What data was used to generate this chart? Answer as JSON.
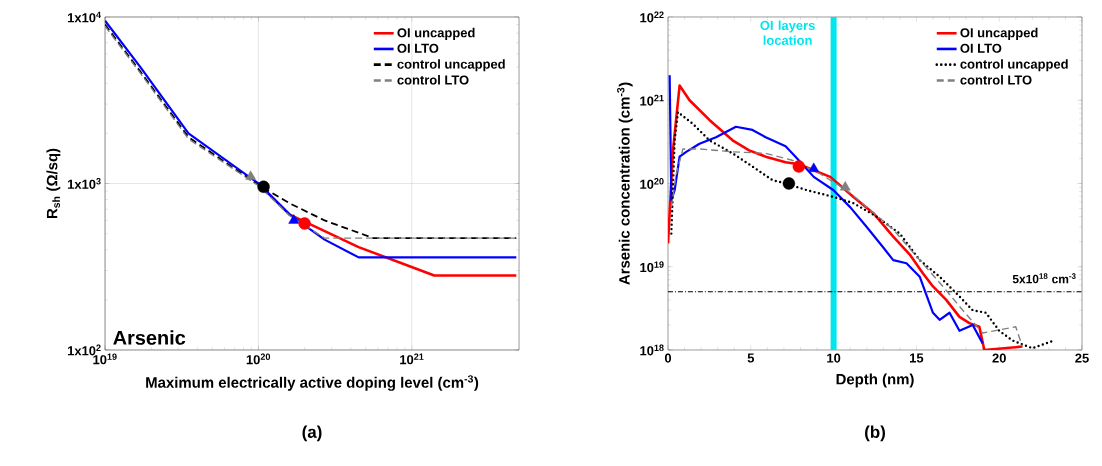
{
  "chart_data": [
    {
      "type": "line",
      "xlabel": "Maximum electrically active doping level (cm$^{-3}$)",
      "ylabel": "R$_{sh}$ (Ω/sq)",
      "log": "xy",
      "grid": true,
      "legend": "top right",
      "xlim": [
        1e+19,
        5e+21
      ],
      "ylim": [
        100,
        10000
      ],
      "xticks": [
        {
          "value": 1e+19,
          "label": "10$^{19}$"
        },
        {
          "value": 1e+20,
          "label": "10$^{20}$"
        },
        {
          "value": 1e+21,
          "label": "10$^{21}$"
        }
      ],
      "yticks": [
        {
          "value": 100,
          "label": "1x10$^{2}$"
        },
        {
          "value": 1000,
          "label": "1x10$^{3}$"
        },
        {
          "value": 10000,
          "label": "1x10$^{4}$"
        }
      ],
      "annotations": [
        "Arsenic",
        "(a)"
      ],
      "series": [
        {
          "name": "OI uncapped",
          "color": "#ff0000",
          "type": "line",
          "line_style": "solid",
          "x": [
            1e+20,
            1.6e+20,
            4.5e+20,
            1.4e+21,
            4.8e+21
          ],
          "values": [
            1000,
            650,
            415,
            280,
            280
          ]
        },
        {
          "name": "OI LTO",
          "color": "#0000ff",
          "type": "line",
          "line_style": "solid",
          "x": [
            1e+19,
            1.7e+19,
            3.5e+19,
            1e+20,
            1.6e+20,
            2.7e+20,
            4.5e+20,
            4.8e+21
          ],
          "values": [
            9500,
            5000,
            2000,
            1000,
            650,
            460,
            360,
            360
          ]
        },
        {
          "name": "control uncapped",
          "color": "#000000",
          "type": "line",
          "line_style": "dashed",
          "x": [
            1e+19,
            1.7e+19,
            3.5e+19,
            1e+20,
            1.6e+20,
            2.7e+20,
            5.6e+20,
            4.8e+21
          ],
          "values": [
            9000,
            4700,
            1900,
            980,
            760,
            600,
            470,
            470
          ]
        },
        {
          "name": "control LTO",
          "color": "#808080",
          "type": "line",
          "line_style": "dashed",
          "x": [
            1e+19,
            1.7e+19,
            3.5e+19,
            1e+20,
            1.6e+20,
            2.7e+20,
            4.8e+21
          ],
          "values": [
            8800,
            4600,
            1850,
            970,
            640,
            470,
            470
          ]
        },
        {
          "color": "#808080",
          "type": "scatter",
          "marker": "triangle",
          "x": [
            8.9e+19
          ],
          "values": [
            1100
          ]
        },
        {
          "color": "#000000",
          "type": "scatter",
          "marker": "circle",
          "x": [
            1.08e+20
          ],
          "values": [
            955
          ]
        },
        {
          "color": "#0000ff",
          "type": "scatter",
          "marker": "triangle",
          "x": [
            1.7e+20
          ],
          "values": [
            600
          ]
        },
        {
          "color": "#ff0000",
          "type": "scatter",
          "marker": "circle",
          "x": [
            2e+20
          ],
          "values": [
            575
          ]
        }
      ]
    },
    {
      "type": "line",
      "xlabel": "Depth (nm)",
      "ylabel": "Arsenic concentration (cm$^{-3}$)",
      "log": "y",
      "legend": "top right",
      "xlim": [
        0,
        25
      ],
      "ylim": [
        1e+18,
        1e+22
      ],
      "xticks": [
        0,
        5,
        10,
        15,
        20,
        25
      ],
      "yticks": [
        {
          "value": 1e+18,
          "label": "10$^{18}$"
        },
        {
          "value": 1e+19,
          "label": "10$^{19}$"
        },
        {
          "value": 1e+20,
          "label": "10$^{20}$"
        },
        {
          "value": 1e+21,
          "label": "10$^{21}$"
        },
        {
          "value": 1e+22,
          "label": "10$^{22}$"
        }
      ],
      "annotations": [
        "(b)"
      ],
      "ref_lines": [
        {
          "axis": "x",
          "value": 10,
          "label": "OI layers location",
          "color": "#00e5ee",
          "line_style": "solid"
        },
        {
          "axis": "y",
          "value": 5e+18,
          "label": "5x10$^{18}$ cm$^{-3}$",
          "color": "#000000",
          "line_style": "dashdot"
        }
      ],
      "series": [
        {
          "name": "OI uncapped",
          "color": "#ff0000",
          "type": "line",
          "line_style": "solid",
          "x": [
            0,
            0.3,
            0.7,
            1.3,
            2.5,
            3.9,
            4.9,
            5.9,
            7.1,
            7.9,
            9.8,
            11.2,
            12.4,
            13.6,
            14.6,
            15.4,
            16.0,
            16.8,
            17.6,
            18.2,
            18.8,
            19.1,
            21.4
          ],
          "values": [
            1.9e+19,
            2.5e+20,
            1.5e+21,
            1e+21,
            5.8e+20,
            3.3e+20,
            2.5e+20,
            2.1e+20,
            1.8e+20,
            1.7e+20,
            1.2e+20,
            6.9e+19,
            4.4e+19,
            2.3e+19,
            1.4e+19,
            8.3e+18,
            5.8e+18,
            4e+18,
            2.5e+18,
            2.1e+18,
            1.9e+18,
            1e+18,
            1.1e+18
          ]
        },
        {
          "name": "OI LTO",
          "color": "#0000ff",
          "type": "line",
          "line_style": "solid",
          "x": [
            0.1,
            0.2,
            0.4,
            0.7,
            1.1,
            1.9,
            2.9,
            4.1,
            5.1,
            5.9,
            7.1,
            7.7,
            8.8,
            10.0,
            11.0,
            12.0,
            13.0,
            13.6,
            14.4,
            15.2,
            16.0,
            16.4,
            17.0,
            17.6,
            18.4,
            19.0
          ],
          "values": [
            2e+21,
            6.3e+19,
            8.3e+19,
            2.1e+20,
            2.4e+20,
            3e+20,
            3.6e+20,
            4.8e+20,
            4.4e+20,
            3.6e+20,
            2.8e+20,
            2.1e+20,
            1.2e+20,
            8.3e+19,
            5.2e+19,
            3e+19,
            1.7e+19,
            1.2e+19,
            1.1e+19,
            7.6e+18,
            2.8e+18,
            2.3e+18,
            2.8e+18,
            1.7e+18,
            2e+18,
            1.2e+18
          ]
        },
        {
          "name": "control uncapped",
          "color": "#000000",
          "type": "line",
          "line_style": "dotted",
          "x": [
            0.2,
            0.4,
            0.6,
            1.5,
            2.5,
            3.9,
            5.1,
            6.3,
            7.1,
            8.4,
            10.0,
            11.2,
            12.6,
            14.0,
            15.2,
            16.4,
            17.6,
            18.4,
            19.2,
            20.0,
            20.8,
            22.0,
            23.3
          ],
          "values": [
            2.5e+19,
            3.3e+20,
            7.2e+20,
            5.2e+20,
            3.3e+20,
            2.3e+20,
            1.6e+20,
            1.1e+20,
            1e+20,
            8.3e+19,
            6.9e+19,
            5.8e+19,
            4e+19,
            2.5e+19,
            1.2e+19,
            7.6e+18,
            4.4e+18,
            3e+18,
            2.8e+18,
            1.7e+18,
            1.3e+18,
            1.05e+18,
            1.3e+18
          ]
        },
        {
          "name": "control LTO",
          "color": "#808080",
          "type": "line",
          "line_style": "dashed",
          "x": [
            0.2,
            0.5,
            0.9,
            1.9,
            3.9,
            5.9,
            7.5,
            9.2,
            10.8,
            12.0,
            13.6,
            15.2,
            16.6,
            17.8,
            19.0,
            21.0,
            21.4
          ],
          "values": [
            5.2e+19,
            1.3e+20,
            2.6e+20,
            2.6e+20,
            2.4e+20,
            2.3e+20,
            1.9e+20,
            1.3e+20,
            8.3e+19,
            5.2e+19,
            2.8e+19,
            1.2e+19,
            5.8e+18,
            3e+18,
            1.6e+18,
            1.9e+18,
            1.1e+18
          ]
        },
        {
          "color": "#000000",
          "type": "scatter",
          "marker": "circle",
          "x": [
            7.3
          ],
          "values": [
            1e+20
          ]
        },
        {
          "color": "#808080",
          "type": "scatter",
          "marker": "triangle",
          "x": [
            10.7
          ],
          "values": [
            9e+19
          ]
        },
        {
          "color": "#ff0000",
          "type": "scatter",
          "marker": "circle",
          "x": [
            7.9
          ],
          "values": [
            1.6e+20
          ]
        },
        {
          "color": "#0000ff",
          "type": "scatter",
          "marker": "triangle",
          "x": [
            8.8
          ],
          "values": [
            1.5e+20
          ]
        }
      ]
    }
  ]
}
